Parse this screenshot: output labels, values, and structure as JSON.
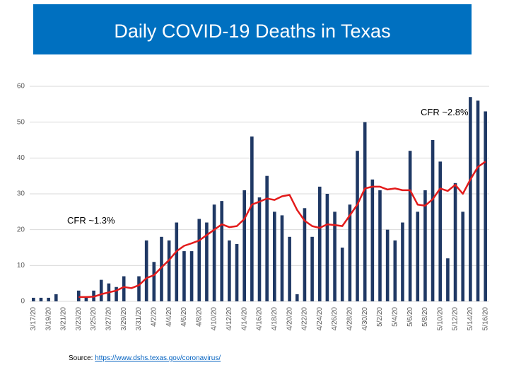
{
  "chart_data": {
    "type": "bar",
    "title": "Daily COVID-19 Deaths in Texas",
    "categories": [
      "3/17/20",
      null,
      "3/19/20",
      null,
      "3/21/20",
      null,
      "3/23/20",
      null,
      "3/25/20",
      null,
      "3/27/20",
      null,
      "3/29/20",
      null,
      "3/31/20",
      null,
      "4/2/20",
      null,
      "4/4/20",
      null,
      "4/6/20",
      null,
      "4/8/20",
      null,
      "4/10/20",
      null,
      "4/12/20",
      null,
      "4/14/20",
      null,
      "4/16/20",
      null,
      "4/18/20",
      null,
      "4/20/20",
      null,
      "4/22/20",
      null,
      "4/24/20",
      null,
      "4/26/20",
      null,
      "4/28/20",
      null,
      "4/30/20",
      null,
      "5/2/20",
      null,
      "5/4/20",
      null,
      "5/6/20",
      null,
      "5/8/20",
      null,
      "5/10/20",
      null,
      "5/12/20",
      null,
      "5/14/20",
      null,
      "5/16/20"
    ],
    "series": [
      {
        "type": "bar",
        "color": "#1f3864",
        "values": [
          1,
          1,
          1,
          2,
          0,
          0,
          3,
          1,
          3,
          6,
          5,
          4,
          7,
          0,
          7,
          17,
          11,
          18,
          17,
          22,
          14,
          14,
          23,
          22,
          27,
          28,
          17,
          16,
          31,
          46,
          29,
          35,
          25,
          24,
          18,
          2,
          26,
          18,
          32,
          30,
          25,
          15,
          27,
          42,
          50,
          34,
          31,
          20,
          17,
          22,
          42,
          25,
          31,
          45,
          39,
          12,
          33,
          25,
          57,
          56,
          53
        ]
      },
      {
        "type": "line",
        "color": "#e31b1b",
        "values": [
          null,
          null,
          null,
          null,
          null,
          null,
          1.2,
          1.2,
          1.3,
          2,
          2.5,
          3,
          4,
          3.7,
          4.5,
          6.5,
          7.3,
          9.5,
          11.5,
          14,
          15.5,
          16.2,
          17,
          18.5,
          20,
          21.5,
          20.7,
          21,
          23,
          27,
          27.8,
          28.7,
          28.3,
          29.3,
          29.7,
          25.5,
          22.5,
          21,
          20.5,
          21.5,
          21.3,
          21,
          24,
          27,
          31.5,
          32,
          32,
          31.2,
          31.5,
          31,
          31,
          27,
          26.7,
          28.5,
          31.5,
          30.8,
          32.5,
          30,
          34,
          37.5,
          39
        ]
      }
    ],
    "ylim": [
      0,
      60
    ],
    "yticks": [
      0,
      10,
      20,
      30,
      40,
      50,
      60
    ],
    "grid": true,
    "annotations": [
      "CFR ~1.3%",
      "CFR ~2.8%"
    ],
    "source_label": "Source:",
    "source_url": "https://www.dshs.texas.gov/coronavirus/"
  }
}
